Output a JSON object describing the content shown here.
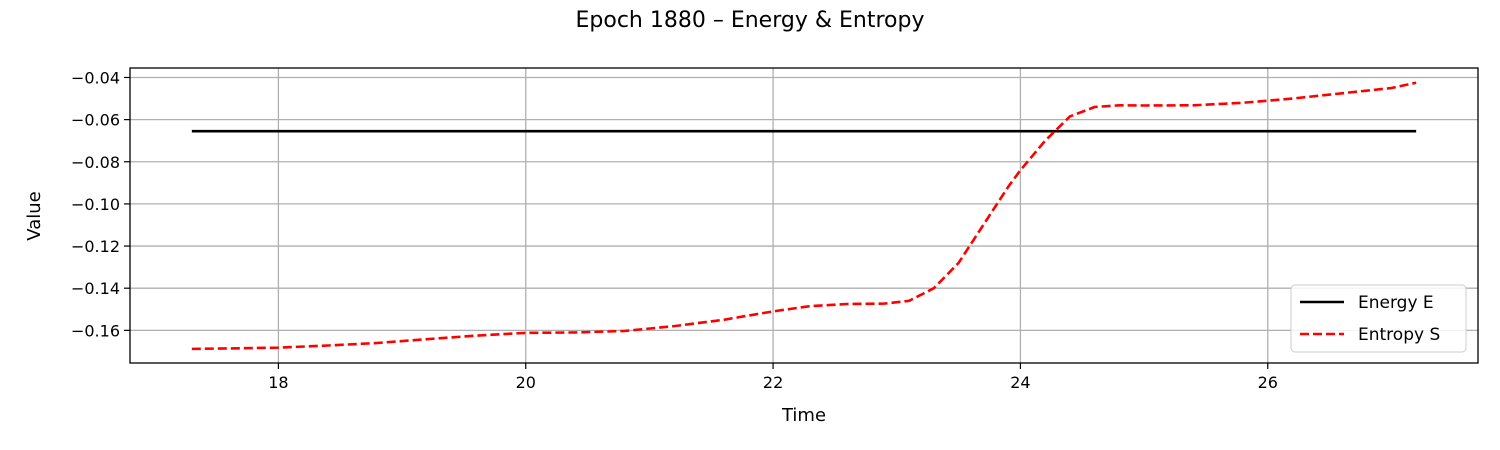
{
  "chart_data": {
    "type": "line",
    "title": "Epoch 1880 – Energy & Entropy",
    "xlabel": "Time",
    "ylabel": "Value",
    "xlim": [
      16.8,
      27.7
    ],
    "ylim": [
      -0.1755,
      -0.0355
    ],
    "xticks": [
      18,
      20,
      22,
      24,
      26
    ],
    "xtick_labels": [
      "18",
      "20",
      "22",
      "24",
      "26"
    ],
    "yticks": [
      -0.16,
      -0.14,
      -0.12,
      -0.1,
      -0.08,
      -0.06,
      -0.04
    ],
    "ytick_labels": [
      "−0.16",
      "−0.14",
      "−0.12",
      "−0.10",
      "−0.08",
      "−0.06",
      "−0.04"
    ],
    "grid": true,
    "legend_position": "bottom-right",
    "series": [
      {
        "name": "Energy E",
        "color": "#000000",
        "style": "solid",
        "x": [
          17.3,
          27.2
        ],
        "y": [
          -0.0655,
          -0.0655
        ]
      },
      {
        "name": "Entropy S",
        "color": "#ff0000",
        "style": "dashed",
        "x": [
          17.3,
          17.6,
          18.0,
          18.4,
          18.8,
          19.2,
          19.6,
          20.0,
          20.4,
          20.8,
          21.2,
          21.6,
          22.0,
          22.3,
          22.6,
          22.9,
          23.1,
          23.3,
          23.5,
          23.7,
          23.9,
          24.0,
          24.2,
          24.4,
          24.6,
          24.8,
          25.0,
          25.4,
          25.8,
          26.2,
          26.6,
          27.0,
          27.2
        ],
        "y": [
          -0.1688,
          -0.1686,
          -0.1682,
          -0.1672,
          -0.166,
          -0.1642,
          -0.1625,
          -0.1612,
          -0.161,
          -0.1603,
          -0.158,
          -0.155,
          -0.151,
          -0.1485,
          -0.1475,
          -0.1473,
          -0.146,
          -0.14,
          -0.128,
          -0.11,
          -0.092,
          -0.084,
          -0.07,
          -0.0585,
          -0.054,
          -0.0532,
          -0.0533,
          -0.0532,
          -0.052,
          -0.05,
          -0.0475,
          -0.045,
          -0.0425
        ]
      }
    ]
  }
}
